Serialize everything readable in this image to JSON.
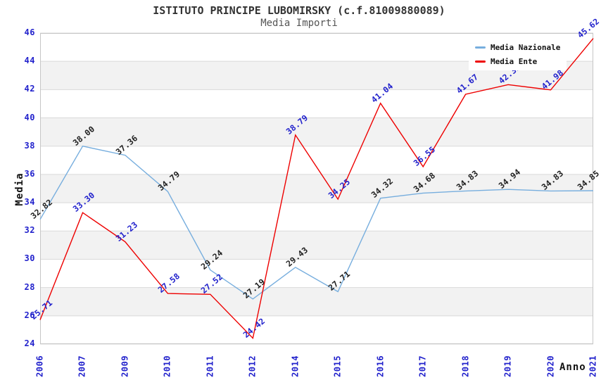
{
  "title": "ISTITUTO PRINCIPE LUBOMIRSKY (c.f.81009880089)",
  "subtitle": "Media Importi",
  "axes": {
    "x_title": "Anno",
    "y_title": "Media",
    "y_ticks": [
      46,
      44,
      42,
      40,
      38,
      36,
      34,
      32,
      30,
      28,
      26,
      24
    ]
  },
  "chart_data": {
    "type": "line",
    "title": "ISTITUTO PRINCIPE LUBOMIRSKY (c.f.81009880089)",
    "subtitle": "Media Importi",
    "xlabel": "Anno",
    "ylabel": "Media",
    "ylim": [
      24,
      46
    ],
    "y_tick_step": 2,
    "grid": true,
    "legend_position": "top-right",
    "categories": [
      "2006",
      "2007",
      "2009",
      "2010",
      "2011",
      "2012",
      "2014",
      "2015",
      "2016",
      "2017",
      "2018",
      "2019",
      "2020",
      "2021"
    ],
    "series": [
      {
        "name": "Media Nazionale",
        "color": "#77aede",
        "label_color": "#222222",
        "values": [
          32.82,
          38.0,
          37.36,
          34.79,
          29.24,
          27.19,
          29.43,
          27.71,
          34.32,
          34.68,
          34.83,
          34.94,
          34.83,
          34.85
        ]
      },
      {
        "name": "Media Ente",
        "color": "#ee0000",
        "label_color": "#2222cc",
        "values": [
          25.71,
          33.3,
          31.23,
          27.58,
          27.52,
          24.42,
          38.79,
          34.25,
          41.04,
          36.55,
          41.67,
          42.35,
          41.98,
          45.62
        ]
      }
    ],
    "colors": {
      "band": "#f2f2f2",
      "grid": "#d9d9d9",
      "frame": "#c6c6c6",
      "tick_label": "#2222cc"
    }
  }
}
